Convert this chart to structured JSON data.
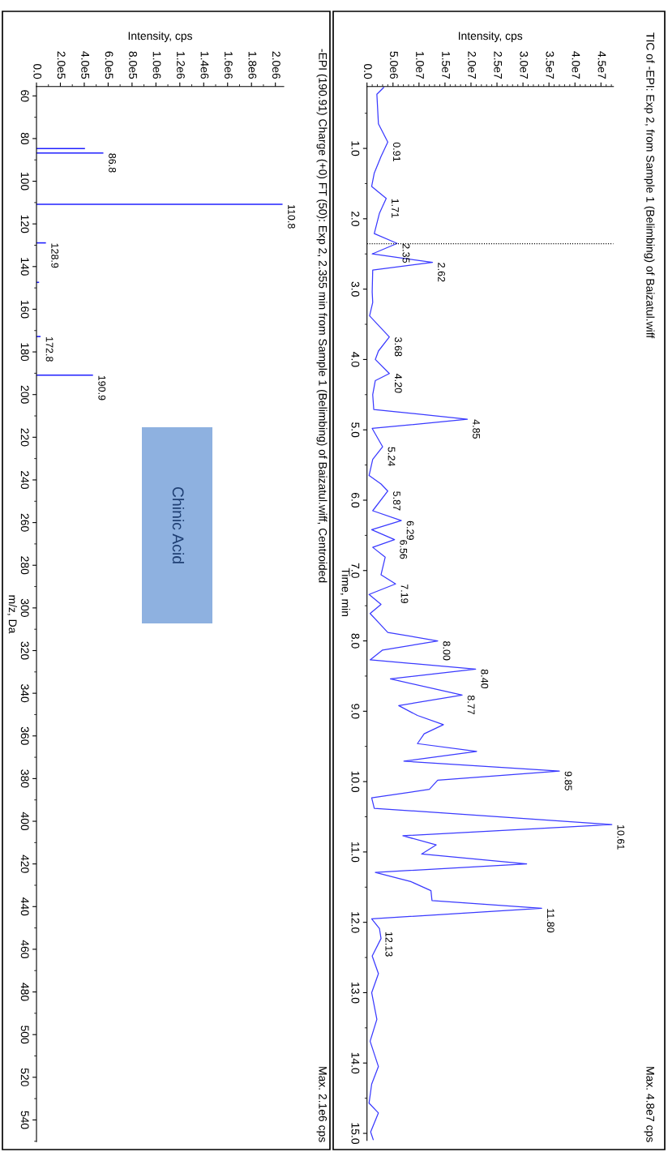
{
  "chart_data": [
    {
      "type": "line",
      "orientation": "horizontal",
      "xlabel": "Intensity, cps",
      "ylabel": "Time, min",
      "x": [
        0.135,
        0.23,
        0.65,
        0.91,
        1.115,
        1.35,
        1.54,
        1.71,
        1.92,
        2.21,
        2.35,
        2.5,
        2.62,
        2.73,
        3.04,
        3.19,
        3.38,
        3.68,
        3.88,
        4.0,
        4.2,
        4.3,
        4.5,
        4.71,
        4.85,
        4.98,
        5.24,
        5.42,
        5.65,
        5.77,
        5.87,
        6.15,
        6.29,
        6.42,
        6.56,
        6.67,
        6.81,
        7.06,
        7.19,
        7.34,
        7.48,
        7.61,
        7.88,
        8.0,
        8.13,
        8.27,
        8.4,
        8.54,
        8.77,
        8.92,
        9.06,
        9.19,
        9.32,
        9.46,
        9.57,
        9.71,
        9.85,
        9.98,
        10.11,
        10.23,
        10.38,
        10.61,
        10.77,
        10.9,
        11.03,
        11.17,
        11.29,
        11.42,
        11.55,
        11.69,
        11.8,
        11.95,
        12.09,
        12.23,
        12.48,
        12.73,
        13.0,
        13.38,
        13.69,
        14.05,
        14.3,
        14.57,
        14.71,
        14.98,
        15.09
      ],
      "series": [
        {
          "color": "#3a3aff",
          "values": [
            3200000,
            1900000,
            2200000,
            4000000,
            2700000,
            1400000,
            900000,
            3700000,
            2400000,
            1400000,
            5800000,
            1000000,
            12600000,
            1100000,
            1000000,
            1100000,
            500000,
            4300000,
            2200000,
            1600000,
            4300000,
            1600000,
            1100000,
            1300000,
            19300000,
            1000000,
            3000000,
            1100000,
            400000,
            2700000,
            4000000,
            1100000,
            6600000,
            900000,
            5300000,
            1100000,
            3500000,
            2700000,
            5500000,
            400000,
            2700000,
            600000,
            4000000,
            13600000,
            3000000,
            600000,
            20900000,
            4500000,
            18300000,
            6100000,
            9700000,
            14700000,
            11000000,
            9700000,
            21100000,
            7100000,
            37000000,
            13600000,
            12000000,
            900000,
            1400000,
            47100000,
            6900000,
            13300000,
            10500000,
            30700000,
            1600000,
            8400000,
            12300000,
            12500000,
            33600000,
            900000,
            2400000,
            2700000,
            1000000,
            2200000,
            900000,
            1900000,
            600000,
            2200000,
            900000,
            400000,
            2200000,
            700000,
            1200000
          ]
        }
      ],
      "ylim": [
        15.1,
        0.12
      ],
      "yticks": [
        {
          "value": 1,
          "label": "1.0"
        },
        {
          "value": 2,
          "label": "2.0"
        },
        {
          "value": 3,
          "label": "3.0"
        },
        {
          "value": 4,
          "label": "4.0"
        },
        {
          "value": 5,
          "label": "5.0"
        },
        {
          "value": 6,
          "label": "6.0"
        },
        {
          "value": 7,
          "label": "7.0"
        },
        {
          "value": 8,
          "label": "8.0"
        },
        {
          "value": 9,
          "label": "9.0"
        },
        {
          "value": 10,
          "label": "10.0"
        },
        {
          "value": 11,
          "label": "11.0"
        },
        {
          "value": 12,
          "label": "12.0"
        },
        {
          "value": 13,
          "label": "13.0"
        },
        {
          "value": 14,
          "label": "14.0"
        },
        {
          "value": 15,
          "label": "15.0"
        }
      ],
      "xlim": [
        0,
        47400000
      ],
      "xticks": [
        {
          "value": 0,
          "label": "0.0"
        },
        {
          "value": 5000000,
          "label": "5.0e6"
        },
        {
          "value": 10000000,
          "label": "1.0e7"
        },
        {
          "value": 15000000,
          "label": "1.5e7"
        },
        {
          "value": 20000000,
          "label": "2.0e7"
        },
        {
          "value": 25000000,
          "label": "2.5e7"
        },
        {
          "value": 30000000,
          "label": "3.0e7"
        },
        {
          "value": 35000000,
          "label": "3.5e7"
        },
        {
          "value": 40000000,
          "label": "4.0e7"
        },
        {
          "value": 45000000,
          "label": "4.5e7"
        }
      ],
      "ref_lines": [
        {
          "axis": "y",
          "value": 2.355,
          "color": "#000000",
          "line_style": "dotted"
        }
      ],
      "annotations": [
        "TIC of -EPI: Exp 2, from Sample 1 (Belimbing) of Baizatul.wiff",
        "Max. 4.8e7 cps",
        {
          "text": "0.91",
          "y": 0.91,
          "x": 4000000
        },
        {
          "text": "1.71",
          "y": 1.71,
          "x": 3700000
        },
        {
          "text": "2.35",
          "y": 2.35,
          "x": 5800000
        },
        {
          "text": "2.62",
          "y": 2.62,
          "x": 12600000
        },
        {
          "text": "3.68",
          "y": 3.68,
          "x": 4300000
        },
        {
          "text": "4.20",
          "y": 4.2,
          "x": 4300000
        },
        {
          "text": "4.85",
          "y": 4.85,
          "x": 19300000
        },
        {
          "text": "5.24",
          "y": 5.24,
          "x": 3000000
        },
        {
          "text": "5.87",
          "y": 5.87,
          "x": 4000000
        },
        {
          "text": "6.29",
          "y": 6.29,
          "x": 6600000
        },
        {
          "text": "6.56",
          "y": 6.56,
          "x": 5300000
        },
        {
          "text": "7.19",
          "y": 7.19,
          "x": 5500000
        },
        {
          "text": "8.00",
          "y": 8.0,
          "x": 13600000
        },
        {
          "text": "8.40",
          "y": 8.4,
          "x": 20900000
        },
        {
          "text": "8.77",
          "y": 8.77,
          "x": 18300000
        },
        {
          "text": "9.85",
          "y": 9.85,
          "x": 37000000
        },
        {
          "text": "10.61",
          "y": 10.61,
          "x": 47100000
        },
        {
          "text": "11.80",
          "y": 11.8,
          "x": 33600000
        },
        {
          "text": "12.13",
          "y": 12.13,
          "x": 2500000
        }
      ]
    },
    {
      "type": "bar",
      "orientation": "horizontal",
      "xlabel": "Intensity, cps",
      "ylabel": "m/z, Da",
      "x": [
        84.7,
        86.8,
        110.8,
        128.9,
        147.4,
        172.8,
        190.9
      ],
      "series": [
        {
          "color": "#2020ff",
          "values": [
            406000,
            560000,
            2060000,
            79000,
            22000,
            34000,
            473000
          ]
        }
      ],
      "ylim": [
        550.2,
        55.6
      ],
      "yticks": [
        60,
        80,
        100,
        120,
        140,
        160,
        180,
        200,
        220,
        240,
        260,
        280,
        300,
        320,
        340,
        360,
        380,
        400,
        420,
        440,
        460,
        480,
        500,
        520,
        540
      ],
      "xlim": [
        0,
        2070000
      ],
      "xticks": [
        {
          "value": 0,
          "label": "0.0"
        },
        {
          "value": 200000,
          "label": "2.0e5"
        },
        {
          "value": 400000,
          "label": "4.0e5"
        },
        {
          "value": 600000,
          "label": "6.0e5"
        },
        {
          "value": 800000,
          "label": "8.0e5"
        },
        {
          "value": 1000000,
          "label": "1.0e6"
        },
        {
          "value": 1200000,
          "label": "1.2e6"
        },
        {
          "value": 1400000,
          "label": "1.4e6"
        },
        {
          "value": 1600000,
          "label": "1.6e6"
        },
        {
          "value": 1800000,
          "label": "1.8e6"
        },
        {
          "value": 2000000,
          "label": "2.0e6"
        }
      ],
      "annotations": [
        "-EPI (190.91) Charge (+0) FT (50): Exp 2, 2.355 min from Sample 1 (Belimbing) of Baizatul.wiff, Centroided",
        "Max. 2.1e6 cps",
        "Chinic Acid",
        {
          "text": "86.8",
          "y": 86.8,
          "x": 560000
        },
        {
          "text": "110.8",
          "y": 110.8,
          "x": 2060000
        },
        {
          "text": "128.9",
          "y": 128.9,
          "x": 79000
        },
        {
          "text": "172.8",
          "y": 172.8,
          "x": 34000
        },
        {
          "text": "190.9",
          "y": 190.9,
          "x": 473000
        }
      ]
    }
  ]
}
